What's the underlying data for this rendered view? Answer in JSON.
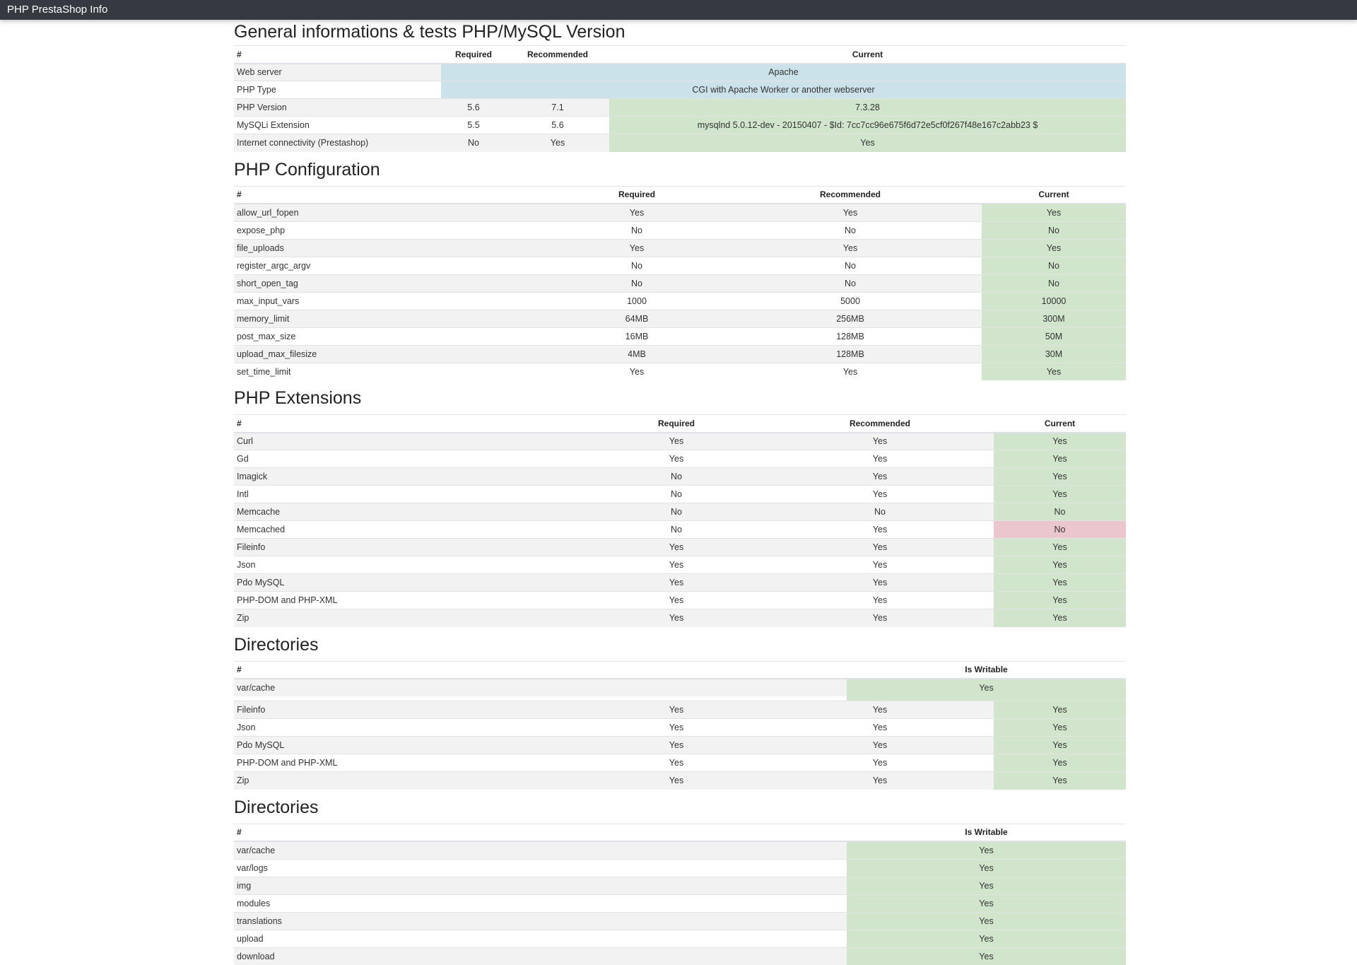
{
  "window_title": "PHP PrestaShop Info",
  "colors": {
    "success": "#d0e5cb",
    "info": "#cbe2ea",
    "danger": "#ebc7cd",
    "topbar": "#343a40"
  },
  "sections": [
    {
      "title": "General informations & tests PHP/MySQL Version",
      "headers": [
        "#",
        "Required",
        "Recommended",
        "Current"
      ],
      "rows": [
        {
          "cells": [
            "Web server",
            "Apache"
          ],
          "span": true,
          "status": "info"
        },
        {
          "cells": [
            "PHP Type",
            "CGI with Apache Worker or another webserver"
          ],
          "span": true,
          "status": "info"
        },
        {
          "cells": [
            "PHP Version",
            "5.6",
            "7.1",
            "7.3.28"
          ],
          "status": "success"
        },
        {
          "cells": [
            "MySQLi Extension",
            "5.5",
            "5.6",
            "mysqlnd 5.0.12-dev - 20150407 - $Id: 7cc7cc96e675f6d72e5cf0f267f48e167c2abb23 $"
          ],
          "status": "success"
        },
        {
          "cells": [
            "Internet connectivity (Prestashop)",
            "No",
            "Yes",
            "Yes"
          ],
          "status": "success"
        }
      ]
    },
    {
      "title": "PHP Configuration",
      "headers": [
        "#",
        "Required",
        "Recommended",
        "Current"
      ],
      "rows": [
        {
          "cells": [
            "allow_url_fopen",
            "Yes",
            "Yes",
            "Yes"
          ],
          "status": "success"
        },
        {
          "cells": [
            "expose_php",
            "No",
            "No",
            "No"
          ],
          "status": "success"
        },
        {
          "cells": [
            "file_uploads",
            "Yes",
            "Yes",
            "Yes"
          ],
          "status": "success"
        },
        {
          "cells": [
            "register_argc_argv",
            "No",
            "No",
            "No"
          ],
          "status": "success"
        },
        {
          "cells": [
            "short_open_tag",
            "No",
            "No",
            "No"
          ],
          "status": "success"
        },
        {
          "cells": [
            "max_input_vars",
            "1000",
            "5000",
            "10000"
          ],
          "status": "success"
        },
        {
          "cells": [
            "memory_limit",
            "64MB",
            "256MB",
            "300M"
          ],
          "status": "success"
        },
        {
          "cells": [
            "post_max_size",
            "16MB",
            "128MB",
            "50M"
          ],
          "status": "success"
        },
        {
          "cells": [
            "upload_max_filesize",
            "4MB",
            "128MB",
            "30M"
          ],
          "status": "success"
        },
        {
          "cells": [
            "set_time_limit",
            "Yes",
            "Yes",
            "Yes"
          ],
          "status": "success"
        }
      ]
    },
    {
      "title": "PHP Extensions",
      "headers": [
        "#",
        "Required",
        "Recommended",
        "Current"
      ],
      "rows": [
        {
          "cells": [
            "Curl",
            "Yes",
            "Yes",
            "Yes"
          ],
          "status": "success"
        },
        {
          "cells": [
            "Gd",
            "Yes",
            "Yes",
            "Yes"
          ],
          "status": "success"
        },
        {
          "cells": [
            "Imagick",
            "No",
            "Yes",
            "Yes"
          ],
          "status": "success"
        },
        {
          "cells": [
            "Intl",
            "No",
            "Yes",
            "Yes"
          ],
          "status": "success"
        },
        {
          "cells": [
            "Memcache",
            "No",
            "No",
            "No"
          ],
          "status": "success"
        },
        {
          "cells": [
            "Memcached",
            "No",
            "Yes",
            "No"
          ],
          "status": "danger"
        },
        {
          "cells": [
            "Fileinfo",
            "Yes",
            "Yes",
            "Yes"
          ],
          "status": "success"
        },
        {
          "cells": [
            "Json",
            "Yes",
            "Yes",
            "Yes"
          ],
          "status": "success"
        },
        {
          "cells": [
            "Pdo MySQL",
            "Yes",
            "Yes",
            "Yes"
          ],
          "status": "success"
        },
        {
          "cells": [
            "PHP-DOM and PHP-XML",
            "Yes",
            "Yes",
            "Yes"
          ],
          "status": "success"
        },
        {
          "cells": [
            "Zip",
            "Yes",
            "Yes",
            "Yes"
          ],
          "status": "success"
        }
      ]
    },
    {
      "title": "Directories",
      "headers": [
        "#",
        "Is Writable"
      ],
      "rows": [
        {
          "cells": [
            "var/cache",
            "Yes"
          ],
          "status": "success"
        }
      ],
      "overlay_rows": [
        {
          "cells": [
            "Fileinfo",
            "Yes",
            "Yes",
            "Yes"
          ],
          "status": "success"
        },
        {
          "cells": [
            "Json",
            "Yes",
            "Yes",
            "Yes"
          ],
          "status": "success"
        },
        {
          "cells": [
            "Pdo MySQL",
            "Yes",
            "Yes",
            "Yes"
          ],
          "status": "success"
        },
        {
          "cells": [
            "PHP-DOM and PHP-XML",
            "Yes",
            "Yes",
            "Yes"
          ],
          "status": "success"
        },
        {
          "cells": [
            "Zip",
            "Yes",
            "Yes",
            "Yes"
          ],
          "status": "success"
        }
      ]
    },
    {
      "title": "Directories",
      "headers": [
        "#",
        "Is Writable"
      ],
      "rows": [
        {
          "cells": [
            "var/cache",
            "Yes"
          ],
          "status": "success"
        },
        {
          "cells": [
            "var/logs",
            "Yes"
          ],
          "status": "success"
        },
        {
          "cells": [
            "img",
            "Yes"
          ],
          "status": "success"
        },
        {
          "cells": [
            "modules",
            "Yes"
          ],
          "status": "success"
        },
        {
          "cells": [
            "translations",
            "Yes"
          ],
          "status": "success"
        },
        {
          "cells": [
            "upload",
            "Yes"
          ],
          "status": "success"
        },
        {
          "cells": [
            "download",
            "Yes"
          ],
          "status": "success"
        }
      ]
    }
  ]
}
